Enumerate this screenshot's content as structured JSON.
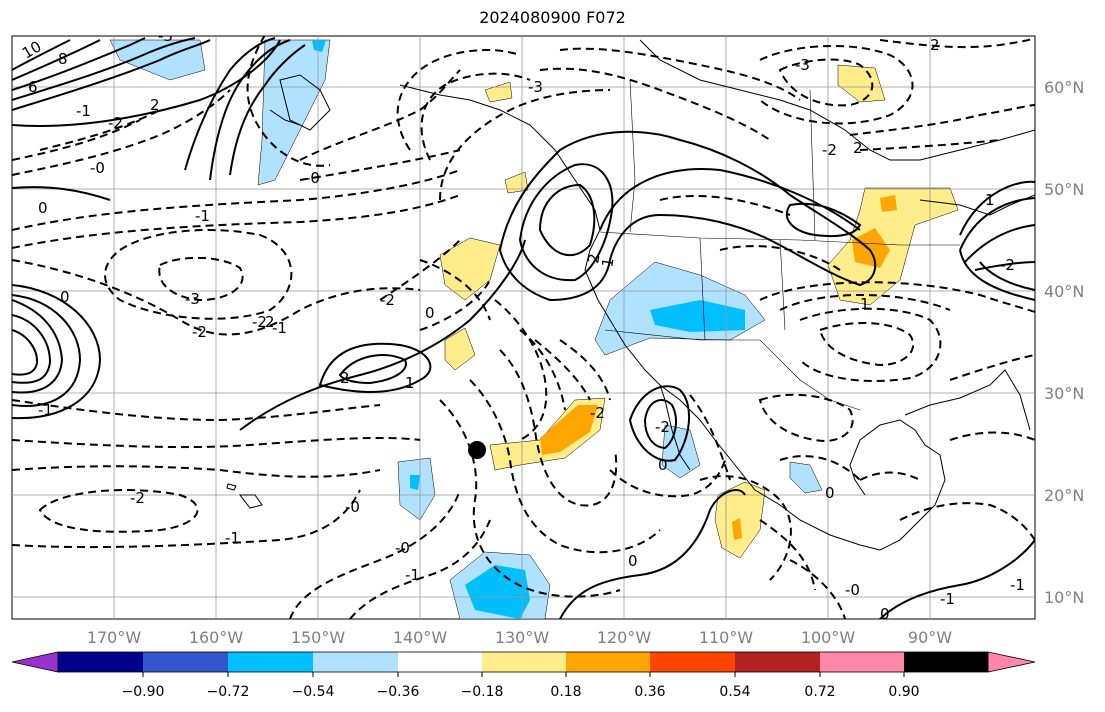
{
  "map": {
    "title": "2024080900 F072",
    "lat_labels": [
      "60°N",
      "50°N",
      "40°N",
      "30°N",
      "20°N",
      "10°N"
    ],
    "lon_labels": [
      "170°W",
      "160°W",
      "150°W",
      "140°W",
      "130°W",
      "120°W",
      "110°W",
      "100°W",
      "90°W"
    ],
    "contour_labels": [
      "10",
      "8",
      "6",
      "-1",
      "-2",
      "-0",
      "0",
      "-1",
      "-2",
      "-3",
      "-2",
      "-1",
      "0",
      "-1",
      "2",
      "1",
      "0",
      "-2",
      "-0",
      "-1",
      "-3",
      "2",
      "-3",
      "-2",
      "2",
      "1",
      "-2",
      "0",
      "-2",
      "-0",
      "-1",
      "2",
      "1",
      "0",
      "-1",
      "0",
      "-0",
      "-2",
      "2",
      "-0",
      "0",
      "-1",
      "1",
      "-2",
      "-3",
      "2"
    ]
  },
  "colorbar": {
    "tick_labels": [
      "−0.90",
      "−0.72",
      "−0.54",
      "−0.36",
      "−0.18",
      "0.18",
      "0.36",
      "0.54",
      "0.72",
      "0.90"
    ],
    "colors": [
      "#9a32cd",
      "#00008b",
      "#3355cc",
      "#00bfff",
      "#b0e2ff",
      "#ffffff",
      "#ffec8b",
      "#ffa500",
      "#ff4500",
      "#b22222",
      "#ff88aa"
    ]
  }
}
